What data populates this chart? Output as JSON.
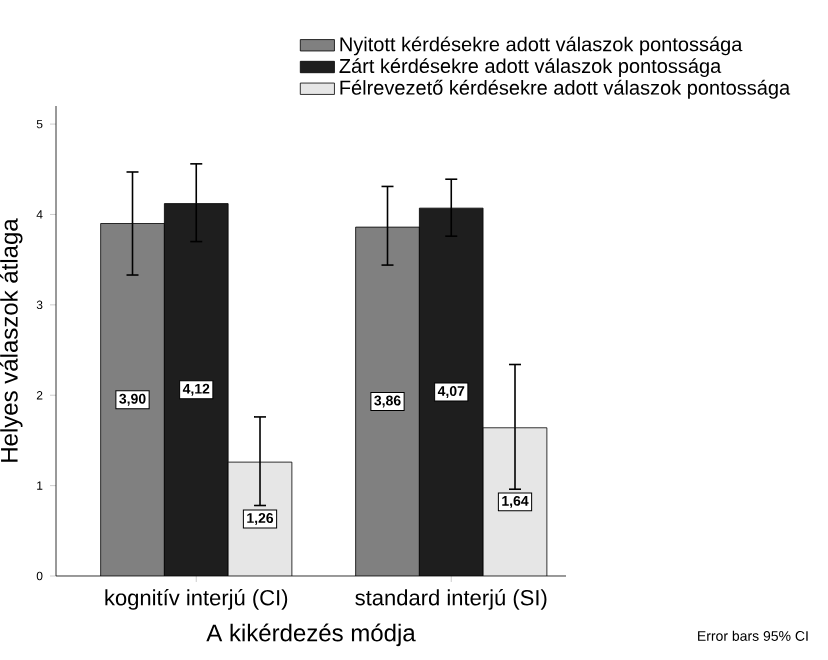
{
  "chart_data": {
    "type": "bar",
    "xlabel": "A kikérdezés módja",
    "ylabel": "Helyes válaszok átlaga",
    "categories": [
      "kognitív interjú (CI)",
      "standard interjú (SI)"
    ],
    "series": [
      {
        "name": "Nyitott kérdésekre adott válaszok pontossága",
        "color": "#808080",
        "values": [
          3.9,
          3.86
        ],
        "value_labels": [
          "3,90",
          "3,86"
        ],
        "errors": [
          [
            3.33,
            4.47
          ],
          [
            3.44,
            4.31
          ]
        ]
      },
      {
        "name": "Zárt kérdésekre adott válaszok pontossága",
        "color": "#1e1e1e",
        "values": [
          4.12,
          4.07
        ],
        "value_labels": [
          "4,12",
          "4,07"
        ],
        "errors": [
          [
            3.7,
            4.56
          ],
          [
            3.76,
            4.39
          ]
        ]
      },
      {
        "name": "Félrevezető kérdésekre adott válaszok pontossága",
        "color": "#e6e6e6",
        "values": [
          1.26,
          1.64
        ],
        "value_labels": [
          "1,26",
          "1,64"
        ],
        "errors": [
          [
            0.78,
            1.76
          ],
          [
            0.96,
            2.34
          ]
        ]
      }
    ],
    "ylim": [
      0,
      5.2
    ],
    "yticks": [
      0,
      1,
      2,
      3,
      4,
      5
    ],
    "legend": "top right",
    "grid": false,
    "annotations": [
      "Error bars 95% CI"
    ]
  }
}
